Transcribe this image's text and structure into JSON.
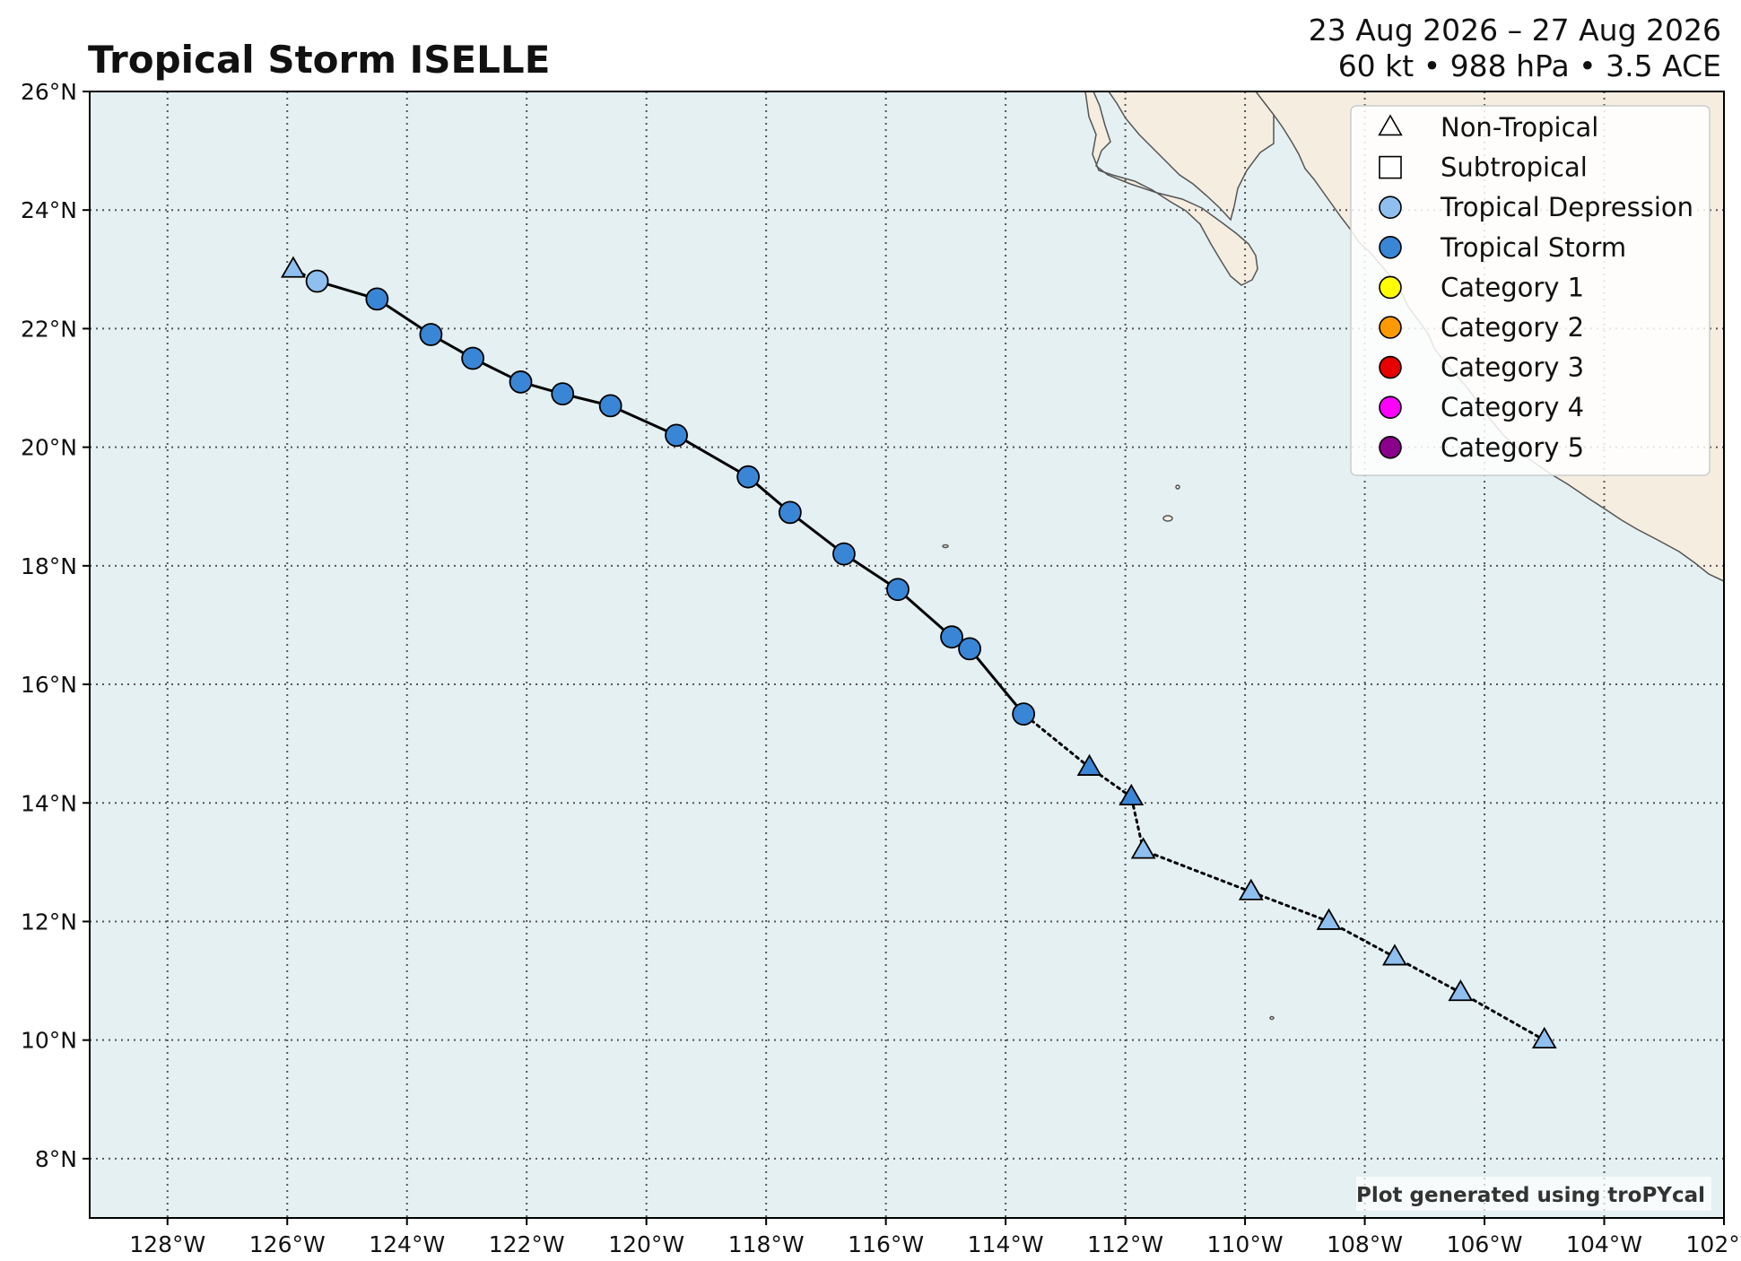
{
  "header": {
    "title": "Tropical Storm ISELLE",
    "date_range": "23 Aug 2026 – 27 Aug 2026",
    "stats": "60 kt • 988 hPa • 3.5 ACE"
  },
  "map": {
    "lon_range": [
      -129.3,
      -102
    ],
    "lat_range": [
      7,
      26
    ],
    "ocean_color": "#e4f0f2",
    "land_color": "#f5ede0",
    "grid_style": "dotted",
    "lon_ticks": [
      {
        "value": -128,
        "label": "128°W"
      },
      {
        "value": -126,
        "label": "126°W"
      },
      {
        "value": -124,
        "label": "124°W"
      },
      {
        "value": -122,
        "label": "122°W"
      },
      {
        "value": -120,
        "label": "120°W"
      },
      {
        "value": -118,
        "label": "118°W"
      },
      {
        "value": -116,
        "label": "116°W"
      },
      {
        "value": -114,
        "label": "114°W"
      },
      {
        "value": -112,
        "label": "112°W"
      },
      {
        "value": -110,
        "label": "110°W"
      },
      {
        "value": -108,
        "label": "108°W"
      },
      {
        "value": -106,
        "label": "106°W"
      },
      {
        "value": -104,
        "label": "104°W"
      },
      {
        "value": -102,
        "label": "102°W"
      }
    ],
    "lat_ticks": [
      {
        "value": 8,
        "label": "8°N"
      },
      {
        "value": 10,
        "label": "10°N"
      },
      {
        "value": 12,
        "label": "12°N"
      },
      {
        "value": 14,
        "label": "14°N"
      },
      {
        "value": 16,
        "label": "16°N"
      },
      {
        "value": 18,
        "label": "18°N"
      },
      {
        "value": 20,
        "label": "20°N"
      },
      {
        "value": 22,
        "label": "22°N"
      },
      {
        "value": 24,
        "label": "24°N"
      },
      {
        "value": 26,
        "label": "26°N"
      }
    ],
    "credit": "Plot generated using troPYcal"
  },
  "legend": {
    "position": "top-right",
    "items": [
      {
        "label": "Non-Tropical",
        "shape": "triangle",
        "color": "#ffffff"
      },
      {
        "label": "Subtropical",
        "shape": "square",
        "color": "#ffffff"
      },
      {
        "label": "Tropical Depression",
        "shape": "circle",
        "color": "#8fbfef"
      },
      {
        "label": "Tropical Storm",
        "shape": "circle",
        "color": "#3a86d6"
      },
      {
        "label": "Category 1",
        "shape": "circle",
        "color": "#ffff00"
      },
      {
        "label": "Category 2",
        "shape": "circle",
        "color": "#ff9900"
      },
      {
        "label": "Category 3",
        "shape": "circle",
        "color": "#e60000"
      },
      {
        "label": "Category 4",
        "shape": "circle",
        "color": "#ff00ff"
      },
      {
        "label": "Category 5",
        "shape": "circle",
        "color": "#8b008b"
      }
    ]
  },
  "track": {
    "points": [
      {
        "lon": -105.0,
        "lat": 10.0,
        "type": "non-tropical",
        "intensity": "TD"
      },
      {
        "lon": -106.4,
        "lat": 10.8,
        "type": "non-tropical",
        "intensity": "TD"
      },
      {
        "lon": -107.5,
        "lat": 11.4,
        "type": "non-tropical",
        "intensity": "TD"
      },
      {
        "lon": -108.6,
        "lat": 12.0,
        "type": "non-tropical",
        "intensity": "TD"
      },
      {
        "lon": -109.9,
        "lat": 12.5,
        "type": "non-tropical",
        "intensity": "TD"
      },
      {
        "lon": -111.7,
        "lat": 13.2,
        "type": "non-tropical",
        "intensity": "TD"
      },
      {
        "lon": -111.9,
        "lat": 14.1,
        "type": "non-tropical",
        "intensity": "TS"
      },
      {
        "lon": -112.6,
        "lat": 14.6,
        "type": "non-tropical",
        "intensity": "TS"
      },
      {
        "lon": -113.7,
        "lat": 15.5,
        "type": "tropical",
        "intensity": "TS"
      },
      {
        "lon": -114.6,
        "lat": 16.6,
        "type": "tropical",
        "intensity": "TS"
      },
      {
        "lon": -114.9,
        "lat": 16.8,
        "type": "tropical",
        "intensity": "TS"
      },
      {
        "lon": -115.8,
        "lat": 17.6,
        "type": "tropical",
        "intensity": "TS"
      },
      {
        "lon": -116.7,
        "lat": 18.2,
        "type": "tropical",
        "intensity": "TS"
      },
      {
        "lon": -117.6,
        "lat": 18.9,
        "type": "tropical",
        "intensity": "TS"
      },
      {
        "lon": -118.3,
        "lat": 19.5,
        "type": "tropical",
        "intensity": "TS"
      },
      {
        "lon": -119.5,
        "lat": 20.2,
        "type": "tropical",
        "intensity": "TS"
      },
      {
        "lon": -120.6,
        "lat": 20.7,
        "type": "tropical",
        "intensity": "TS"
      },
      {
        "lon": -121.4,
        "lat": 20.9,
        "type": "tropical",
        "intensity": "TS"
      },
      {
        "lon": -122.1,
        "lat": 21.1,
        "type": "tropical",
        "intensity": "TS"
      },
      {
        "lon": -122.9,
        "lat": 21.5,
        "type": "tropical",
        "intensity": "TS"
      },
      {
        "lon": -123.6,
        "lat": 21.9,
        "type": "tropical",
        "intensity": "TS"
      },
      {
        "lon": -124.5,
        "lat": 22.5,
        "type": "tropical",
        "intensity": "TS"
      },
      {
        "lon": -125.5,
        "lat": 22.8,
        "type": "tropical",
        "intensity": "TD"
      },
      {
        "lon": -125.9,
        "lat": 23.0,
        "type": "non-tropical",
        "intensity": "TD"
      }
    ]
  }
}
